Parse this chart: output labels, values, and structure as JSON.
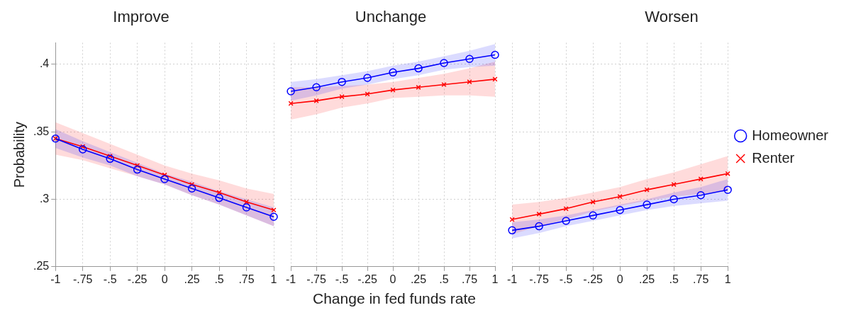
{
  "chart_data": [
    {
      "type": "line",
      "title": "Improve",
      "ylabel": "Probability",
      "x": [
        -1,
        -0.75,
        -0.5,
        -0.25,
        0,
        0.25,
        0.5,
        0.75,
        1
      ],
      "xlim": [
        -1,
        1
      ],
      "xticks": [
        -1,
        {
          "value": -0.75,
          "label": "-.75"
        },
        {
          "value": -0.5,
          "label": "-.5"
        },
        {
          "value": -0.25,
          "label": "-.25"
        },
        0,
        {
          "value": 0.25,
          "label": ".25"
        },
        {
          "value": 0.5,
          "label": ".5"
        },
        {
          "value": 0.75,
          "label": ".75"
        },
        1
      ],
      "ylim": [
        0.25,
        0.416
      ],
      "yticks": [
        {
          "value": 0.25,
          "label": ".25"
        },
        {
          "value": 0.3,
          "label": ".3"
        },
        {
          "value": 0.35,
          "label": ".35"
        },
        {
          "value": 0.4,
          "label": ".4"
        }
      ],
      "grid": true,
      "series": [
        {
          "color": "#0000ff",
          "marker": "circle",
          "values": [
            0.345,
            0.337,
            0.33,
            0.322,
            0.315,
            0.308,
            0.301,
            0.294,
            0.287
          ],
          "lower": [
            0.338,
            0.331,
            0.325,
            0.317,
            0.311,
            0.303,
            0.296,
            0.288,
            0.28
          ],
          "upper": [
            0.352,
            0.343,
            0.335,
            0.327,
            0.319,
            0.313,
            0.306,
            0.3,
            0.294
          ]
        },
        {
          "color": "#ff0000",
          "marker": "cross",
          "values": [
            0.345,
            0.339,
            0.332,
            0.325,
            0.318,
            0.311,
            0.305,
            0.298,
            0.292
          ],
          "lower": [
            0.333,
            0.329,
            0.323,
            0.317,
            0.311,
            0.303,
            0.296,
            0.288,
            0.28
          ],
          "upper": [
            0.357,
            0.349,
            0.341,
            0.333,
            0.325,
            0.319,
            0.314,
            0.308,
            0.304
          ]
        }
      ]
    },
    {
      "type": "line",
      "title": "Unchange",
      "xlabel": "Change in fed funds rate",
      "x": [
        -1,
        -0.75,
        -0.5,
        -0.25,
        0,
        0.25,
        0.5,
        0.75,
        1
      ],
      "xlim": [
        -1,
        1
      ],
      "xticks": [
        -1,
        {
          "value": -0.75,
          "label": "-.75"
        },
        {
          "value": -0.5,
          "label": "-.5"
        },
        {
          "value": -0.25,
          "label": "-.25"
        },
        0,
        {
          "value": 0.25,
          "label": ".25"
        },
        {
          "value": 0.5,
          "label": ".5"
        },
        {
          "value": 0.75,
          "label": ".75"
        },
        1
      ],
      "ylim": [
        0.25,
        0.416
      ],
      "yticks": [
        0.25,
        0.3,
        0.35,
        0.4
      ],
      "grid": true,
      "tick_labels": "x",
      "series": [
        {
          "color": "#0000ff",
          "marker": "circle",
          "values": [
            0.38,
            0.383,
            0.387,
            0.39,
            0.394,
            0.397,
            0.401,
            0.404,
            0.407
          ],
          "lower": [
            0.373,
            0.377,
            0.382,
            0.385,
            0.389,
            0.392,
            0.396,
            0.398,
            0.399
          ],
          "upper": [
            0.387,
            0.389,
            0.392,
            0.395,
            0.399,
            0.402,
            0.406,
            0.41,
            0.415
          ]
        },
        {
          "color": "#ff0000",
          "marker": "cross",
          "values": [
            0.371,
            0.373,
            0.376,
            0.378,
            0.381,
            0.383,
            0.385,
            0.387,
            0.389
          ],
          "lower": [
            0.359,
            0.363,
            0.368,
            0.371,
            0.375,
            0.376,
            0.377,
            0.377,
            0.376
          ],
          "upper": [
            0.383,
            0.383,
            0.384,
            0.385,
            0.387,
            0.39,
            0.393,
            0.397,
            0.402
          ]
        }
      ]
    },
    {
      "type": "line",
      "title": "Worsen",
      "x": [
        -1,
        -0.75,
        -0.5,
        -0.25,
        0,
        0.25,
        0.5,
        0.75,
        1
      ],
      "xlim": [
        -1,
        1
      ],
      "xticks": [
        -1,
        {
          "value": -0.75,
          "label": "-.75"
        },
        {
          "value": -0.5,
          "label": "-.5"
        },
        {
          "value": -0.25,
          "label": "-.25"
        },
        0,
        {
          "value": 0.25,
          "label": ".25"
        },
        {
          "value": 0.5,
          "label": ".5"
        },
        {
          "value": 0.75,
          "label": ".75"
        },
        1
      ],
      "ylim": [
        0.25,
        0.416
      ],
      "yticks": [
        0.25,
        0.3,
        0.35,
        0.4
      ],
      "grid": true,
      "tick_labels": "x",
      "legend": "right",
      "series": [
        {
          "name": "Homeowner",
          "color": "#0000ff",
          "marker": "circle",
          "values": [
            0.277,
            0.28,
            0.284,
            0.288,
            0.292,
            0.296,
            0.3,
            0.303,
            0.307
          ],
          "lower": [
            0.271,
            0.275,
            0.28,
            0.284,
            0.288,
            0.292,
            0.295,
            0.297,
            0.299
          ],
          "upper": [
            0.283,
            0.285,
            0.288,
            0.292,
            0.296,
            0.3,
            0.305,
            0.309,
            0.315
          ]
        },
        {
          "name": "Renter",
          "color": "#ff0000",
          "marker": "cross",
          "values": [
            0.285,
            0.289,
            0.293,
            0.298,
            0.302,
            0.307,
            0.311,
            0.315,
            0.319
          ],
          "lower": [
            0.274,
            0.28,
            0.285,
            0.291,
            0.295,
            0.299,
            0.302,
            0.304,
            0.306
          ],
          "upper": [
            0.296,
            0.298,
            0.301,
            0.305,
            0.309,
            0.315,
            0.32,
            0.326,
            0.332
          ]
        }
      ]
    }
  ]
}
